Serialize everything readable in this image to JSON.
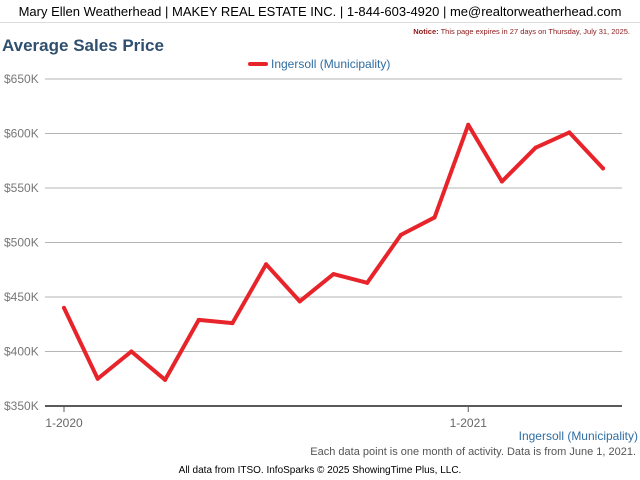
{
  "header": {
    "text": "Mary Ellen Weatherhead | MAKEY REAL ESTATE INC. | 1-844-603-4920 | me@realtorweatherhead.com"
  },
  "notice": {
    "label": "Notice:",
    "text": "This page expires in 27 days on Thursday, July 31, 2025."
  },
  "colors": {
    "series": "#e8242b",
    "title": "#2f4f6f",
    "legend_text": "#2f6da0"
  },
  "caption": "Each data point is one month of activity. Data is from June 1, 2021.",
  "footer": "All data from ITSO. InfoSparks © 2025 ShowingTime Plus, LLC.",
  "chart_data": {
    "type": "line",
    "title": "Average Sales Price",
    "xlabel": "Ingersoll (Municipality)",
    "ylabel": "",
    "ylim": [
      350000,
      650000
    ],
    "yticks": [
      350000,
      400000,
      450000,
      500000,
      550000,
      600000,
      650000
    ],
    "ytick_labels": [
      "$350K",
      "$400K",
      "$450K",
      "$500K",
      "$550K",
      "$600K",
      "$650K"
    ],
    "xtick_labels": [
      {
        "index": 0,
        "label": "1-2020"
      },
      {
        "index": 12,
        "label": "1-2021"
      }
    ],
    "grid": true,
    "legend_position": "top-center",
    "series": [
      {
        "name": "Ingersoll (Municipality)",
        "x": [
          "1-2020",
          "2-2020",
          "3-2020",
          "4-2020",
          "5-2020",
          "6-2020",
          "7-2020",
          "8-2020",
          "9-2020",
          "10-2020",
          "11-2020",
          "12-2020",
          "1-2021",
          "2-2021",
          "3-2021",
          "4-2021",
          "5-2021"
        ],
        "values": [
          440000,
          375000,
          400000,
          374000,
          429000,
          426000,
          480000,
          446000,
          471000,
          463000,
          507000,
          523000,
          608000,
          556000,
          587000,
          601000,
          568000
        ]
      }
    ]
  }
}
